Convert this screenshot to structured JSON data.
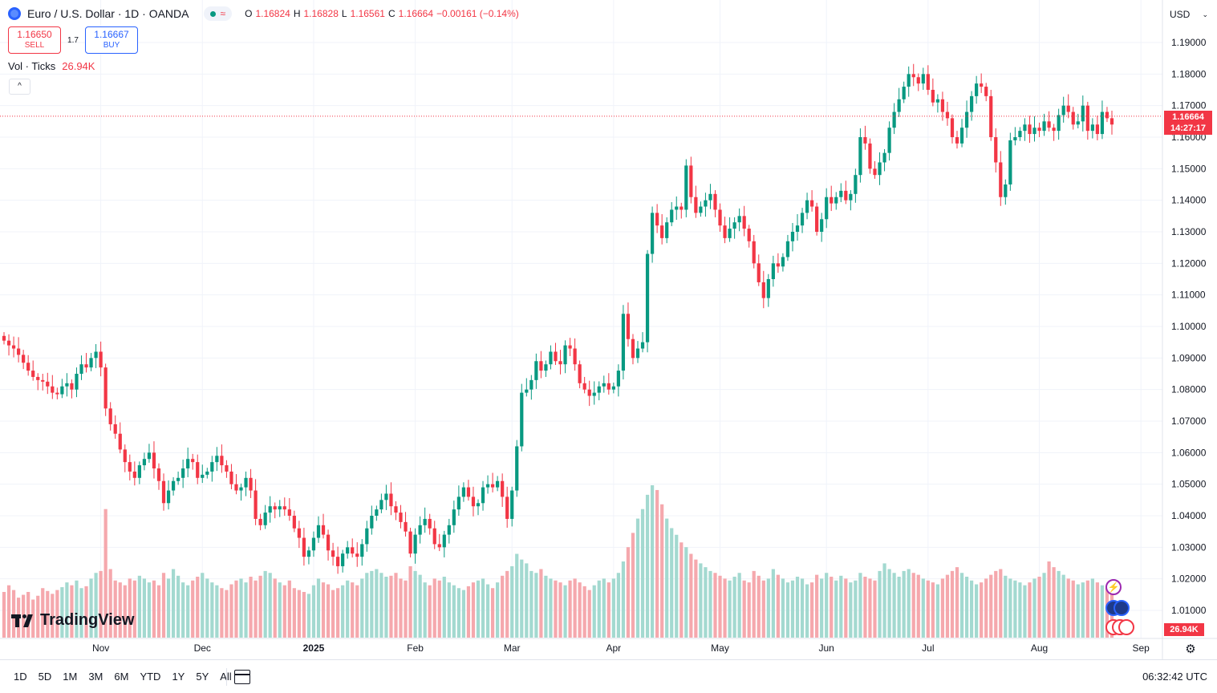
{
  "header": {
    "symbol_title": "Euro / U.S. Dollar · 1D · OANDA",
    "market_icon": "market-open-dot",
    "wave_icon": "≈",
    "ohlc": {
      "open_label": "O",
      "open": "1.16824",
      "high_label": "H",
      "high": "1.16828",
      "low_label": "L",
      "low": "1.16561",
      "close_label": "C",
      "close": "1.16664",
      "change": "−0.00161 (−0.14%)"
    }
  },
  "trade": {
    "sell_price": "1.16650",
    "sell_label": "SELL",
    "spread": "1.7",
    "buy_price": "1.16667",
    "buy_label": "BUY"
  },
  "volume_legend": {
    "label": "Vol · Ticks",
    "value": "26.94K"
  },
  "collapse_icon": "^",
  "currency_selector": {
    "value": "USD",
    "icon": "chevron-down"
  },
  "price_tag": {
    "price": "1.16664",
    "countdown": "14:27:17"
  },
  "volume_tag": "26.94K",
  "logo": {
    "text": "TradingView"
  },
  "time_ranges": [
    "1D",
    "5D",
    "1M",
    "3M",
    "6M",
    "YTD",
    "1Y",
    "5Y",
    "All"
  ],
  "clock": "06:32:42 UTC",
  "colors": {
    "up": "#089981",
    "down": "#f23645",
    "up_vol": "#a3d9d0",
    "down_vol": "#f5a8ad",
    "grid": "#f0f3fa"
  },
  "chart_data": {
    "type": "candlestick",
    "price_axis": {
      "ticks": [
        1.01,
        1.02,
        1.03,
        1.04,
        1.05,
        1.06,
        1.07,
        1.08,
        1.09,
        1.1,
        1.11,
        1.12,
        1.13,
        1.14,
        1.15,
        1.16,
        1.17,
        1.18,
        1.19
      ],
      "labels": [
        "1.01000",
        "1.02000",
        "1.03000",
        "1.04000",
        "1.05000",
        "1.06000",
        "1.07000",
        "1.08000",
        "1.09000",
        "1.10000",
        "1.11000",
        "1.12000",
        "1.13000",
        "1.14000",
        "1.15000",
        "1.16000",
        "1.17000",
        "1.18000",
        "1.19000"
      ],
      "range": [
        1.001,
        1.1955
      ]
    },
    "time_axis": {
      "labels": [
        "Nov",
        "Dec",
        "2025",
        "Feb",
        "Mar",
        "Apr",
        "May",
        "Jun",
        "Jul",
        "Aug",
        "Sep"
      ],
      "bold": [
        "2025"
      ],
      "label_bar_index": [
        20,
        41,
        64,
        85,
        105,
        126,
        148,
        170,
        191,
        214,
        235
      ]
    },
    "last_price": 1.16664,
    "closes": [
      1.0955,
      1.094,
      1.093,
      1.091,
      1.0885,
      1.086,
      1.084,
      1.083,
      1.0825,
      1.081,
      1.079,
      1.0785,
      1.081,
      1.082,
      1.08,
      1.085,
      1.088,
      1.087,
      1.09,
      1.092,
      1.087,
      1.074,
      1.069,
      1.066,
      1.061,
      1.057,
      1.054,
      1.052,
      1.056,
      1.058,
      1.06,
      1.055,
      1.051,
      1.044,
      1.048,
      1.051,
      1.052,
      1.055,
      1.058,
      1.057,
      1.052,
      1.053,
      1.054,
      1.057,
      1.059,
      1.056,
      1.054,
      1.05,
      1.048,
      1.049,
      1.052,
      1.048,
      1.039,
      1.037,
      1.041,
      1.043,
      1.042,
      1.043,
      1.042,
      1.04,
      1.036,
      1.033,
      1.027,
      1.029,
      1.033,
      1.037,
      1.034,
      1.029,
      1.027,
      1.024,
      1.028,
      1.03,
      1.028,
      1.027,
      1.031,
      1.036,
      1.04,
      1.042,
      1.045,
      1.047,
      1.043,
      1.041,
      1.038,
      1.035,
      1.028,
      1.034,
      1.037,
      1.039,
      1.036,
      1.031,
      1.03,
      1.034,
      1.037,
      1.042,
      1.046,
      1.049,
      1.046,
      1.043,
      1.044,
      1.049,
      1.05,
      1.049,
      1.051,
      1.046,
      1.039,
      1.048,
      1.062,
      1.079,
      1.08,
      1.083,
      1.089,
      1.086,
      1.088,
      1.092,
      1.089,
      1.088,
      1.094,
      1.093,
      1.088,
      1.082,
      1.08,
      1.078,
      1.079,
      1.081,
      1.082,
      1.08,
      1.081,
      1.086,
      1.104,
      1.096,
      1.09,
      1.093,
      1.095,
      1.123,
      1.136,
      1.132,
      1.128,
      1.133,
      1.137,
      1.138,
      1.137,
      1.151,
      1.141,
      1.136,
      1.138,
      1.14,
      1.142,
      1.137,
      1.132,
      1.128,
      1.131,
      1.133,
      1.135,
      1.131,
      1.127,
      1.12,
      1.114,
      1.109,
      1.115,
      1.12,
      1.119,
      1.122,
      1.127,
      1.13,
      1.132,
      1.136,
      1.14,
      1.138,
      1.13,
      1.134,
      1.141,
      1.139,
      1.141,
      1.143,
      1.14,
      1.142,
      1.148,
      1.16,
      1.158,
      1.15,
      1.148,
      1.152,
      1.155,
      1.163,
      1.168,
      1.172,
      1.176,
      1.18,
      1.179,
      1.177,
      1.18,
      1.175,
      1.171,
      1.172,
      1.168,
      1.166,
      1.16,
      1.158,
      1.163,
      1.168,
      1.173,
      1.177,
      1.176,
      1.173,
      1.16,
      1.152,
      1.141,
      1.145,
      1.159,
      1.16,
      1.162,
      1.164,
      1.161,
      1.163,
      1.162,
      1.165,
      1.163,
      1.162,
      1.167,
      1.17,
      1.168,
      1.164,
      1.165,
      1.17,
      1.162,
      1.164,
      1.161,
      1.168,
      1.166,
      1.164
    ],
    "volume_max_label": "26.94K",
    "volume": [
      48,
      55,
      50,
      42,
      45,
      48,
      40,
      44,
      52,
      49,
      46,
      50,
      53,
      58,
      55,
      60,
      52,
      54,
      62,
      68,
      70,
      135,
      72,
      60,
      58,
      55,
      62,
      60,
      65,
      62,
      58,
      60,
      55,
      68,
      62,
      72,
      65,
      58,
      55,
      60,
      64,
      68,
      62,
      58,
      55,
      52,
      50,
      56,
      60,
      62,
      58,
      64,
      60,
      65,
      70,
      68,
      62,
      58,
      55,
      60,
      52,
      50,
      48,
      46,
      55,
      62,
      58,
      56,
      50,
      52,
      55,
      60,
      58,
      55,
      62,
      68,
      70,
      72,
      68,
      64,
      65,
      68,
      62,
      60,
      75,
      70,
      66,
      58,
      55,
      62,
      60,
      64,
      58,
      55,
      52,
      50,
      54,
      58,
      60,
      62,
      56,
      52,
      58,
      65,
      70,
      75,
      88,
      82,
      78,
      70,
      68,
      72,
      65,
      62,
      60,
      58,
      55,
      60,
      62,
      58,
      54,
      50,
      55,
      60,
      62,
      58,
      62,
      68,
      80,
      95,
      110,
      125,
      135,
      150,
      160,
      155,
      140,
      125,
      115,
      108,
      100,
      95,
      88,
      82,
      78,
      74,
      70,
      68,
      65,
      62,
      60,
      64,
      68,
      60,
      58,
      70,
      65,
      60,
      62,
      72,
      66,
      62,
      58,
      60,
      64,
      62,
      56,
      58,
      66,
      62,
      68,
      64,
      60,
      65,
      62,
      58,
      60,
      68,
      64,
      62,
      60,
      70,
      78,
      72,
      68,
      64,
      70,
      72,
      68,
      66,
      62,
      60,
      58,
      56,
      62,
      66,
      70,
      74,
      68,
      64,
      60,
      56,
      58,
      62,
      66,
      70,
      72,
      65,
      62,
      60,
      58,
      55,
      58,
      62,
      64,
      68,
      80,
      74,
      70,
      66,
      62,
      60,
      56,
      58,
      60,
      62,
      58,
      55,
      52,
      50,
      48,
      52,
      55,
      58,
      60,
      62,
      58,
      55
    ]
  }
}
